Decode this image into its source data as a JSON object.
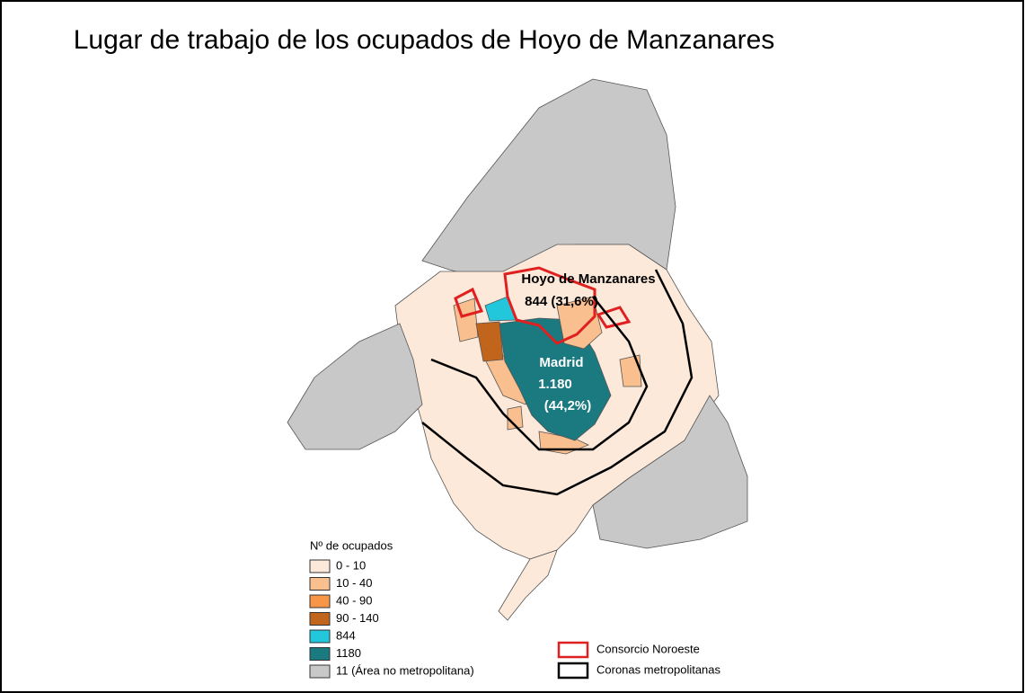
{
  "title": "Lugar de trabajo de los ocupados de Hoyo de Manzanares",
  "map_labels": {
    "origin_name": "Hoyo de Manzanares",
    "origin_value": "844 (31,6%)",
    "madrid_name": "Madrid",
    "madrid_value": "1.180",
    "madrid_share": "(44,2%)"
  },
  "legend": {
    "title": "Nº de ocupados",
    "items": [
      {
        "label": "0 - 10",
        "color": "#fde9d9"
      },
      {
        "label": "10 - 40",
        "color": "#f9bf8f"
      },
      {
        "label": "40 - 90",
        "color": "#f79646"
      },
      {
        "label": "90 - 140",
        "color": "#c0651b"
      },
      {
        "label": "844",
        "color": "#22c7dc"
      },
      {
        "label": "1180",
        "color": "#1a7a80"
      },
      {
        "label": "11 (Área no metropolitana)",
        "color": "#c8c8c8"
      }
    ]
  },
  "boundary_legend": [
    {
      "label": "Consorcio Noroeste",
      "color": "#e02020"
    },
    {
      "label": "Coronas metropolitanas",
      "color": "#000000"
    }
  ]
}
